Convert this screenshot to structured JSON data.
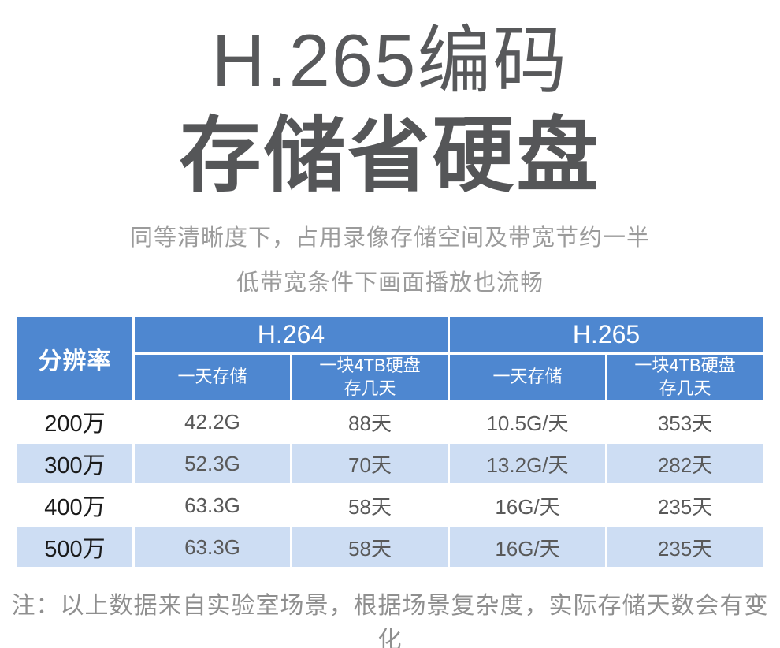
{
  "hero": {
    "title_line1": "H.265编码",
    "title_line2": "存储省硬盘",
    "subtitle_line1": "同等清晰度下，占用录像存储空间及带宽节约一半",
    "subtitle_line2": "低带宽条件下画面播放也流畅"
  },
  "table": {
    "resolution_header": "分辨率",
    "h264_label": "H.264",
    "h265_label": "H.265",
    "sub_day_storage": "一天存储",
    "sub_4tb_line1": "一块4TB硬盘",
    "sub_4tb_line2": "存几天",
    "rows": [
      {
        "resolution": "200万",
        "values": [
          "42.2G",
          "88天",
          "10.5G/天",
          "353天"
        ]
      },
      {
        "resolution": "300万",
        "values": [
          "52.3G",
          "70天",
          "13.2G/天",
          "282天"
        ]
      },
      {
        "resolution": "400万",
        "values": [
          "63.3G",
          "58天",
          "16G/天",
          "235天"
        ]
      },
      {
        "resolution": "500万",
        "values": [
          "63.3G",
          "58天",
          "16G/天",
          "235天"
        ]
      }
    ]
  },
  "note": "注：以上数据来自实验室场景，根据场景复杂度，实际存储天数会有变化",
  "colors": {
    "header_blue": "#4e87d0",
    "row_stripe_blue": "#cdddf3",
    "title_gray": "#58595b",
    "subtitle_gray": "#9b9b9b",
    "cell_text_gray": "#595959",
    "resolution_text": "#1a1a1a",
    "note_gray": "#8f8f8f"
  }
}
